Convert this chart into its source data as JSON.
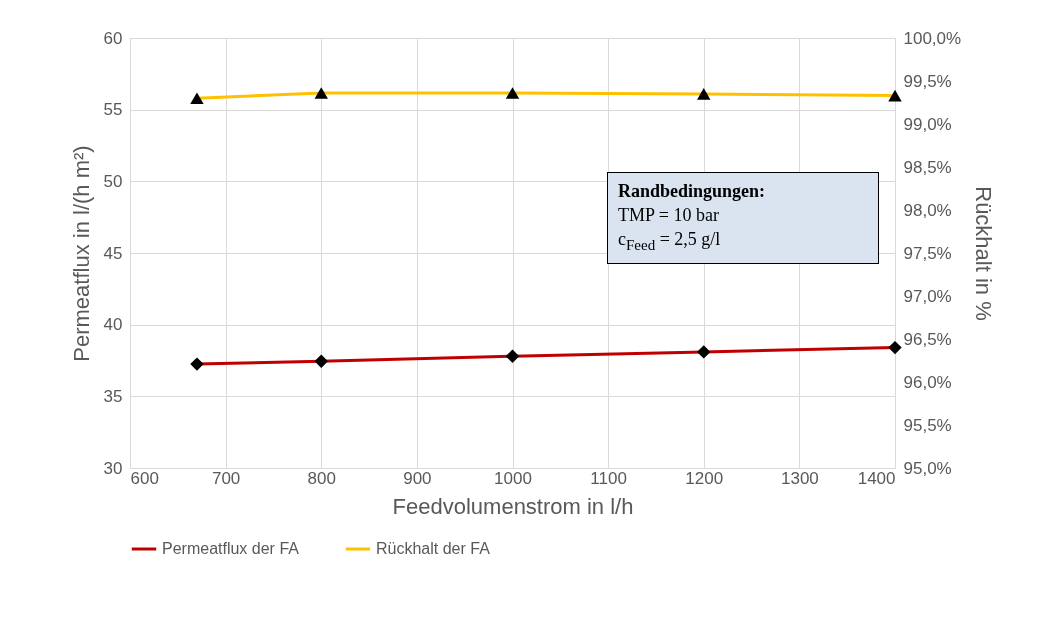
{
  "chart_data": {
    "type": "line",
    "xlabel": "Feedvolumenstrom in l/h",
    "ylabel": "Permeatflux in l/(h m²)",
    "y2label": "Rückhalt in %",
    "x": [
      670,
      800,
      1000,
      1200,
      1400
    ],
    "series": [
      {
        "name": "Permeatflux der FA",
        "color": "#c00000",
        "marker": "diamond",
        "values": [
          37.25,
          37.45,
          37.8,
          38.1,
          38.4
        ]
      },
      {
        "name": "Rückhalt der FA",
        "color": "#ffc000",
        "marker": "triangle",
        "axis": "y2",
        "values": [
          99.3,
          99.36,
          99.36,
          99.35,
          99.33
        ]
      }
    ],
    "xlim": [
      600,
      1400
    ],
    "xticks": [
      600,
      700,
      800,
      900,
      1000,
      1100,
      1200,
      1300,
      1400
    ],
    "ylim": [
      30,
      60
    ],
    "yticks": [
      30,
      35,
      40,
      45,
      50,
      55,
      60
    ],
    "y2lim": [
      95,
      100
    ],
    "y2ticks": [
      {
        "value": 95,
        "label": "95,0%"
      },
      {
        "value": 95.5,
        "label": "95,5%"
      },
      {
        "value": 96,
        "label": "96,0%"
      },
      {
        "value": 96.5,
        "label": "96,5%"
      },
      {
        "value": 97,
        "label": "97,0%"
      },
      {
        "value": 97.5,
        "label": "97,5%"
      },
      {
        "value": 98,
        "label": "98,0%"
      },
      {
        "value": 98.5,
        "label": "98,5%"
      },
      {
        "value": 99,
        "label": "99,0%"
      },
      {
        "value": 99.5,
        "label": "99,5%"
      },
      {
        "value": 100,
        "label": "100,0%"
      }
    ],
    "grid": true,
    "legend": "bottom",
    "line_style": "solid",
    "annotations": [
      "Randbedingungen:",
      "TMP = 10 bar",
      "c$_{Feed}$ = 2,5 g/l"
    ]
  }
}
